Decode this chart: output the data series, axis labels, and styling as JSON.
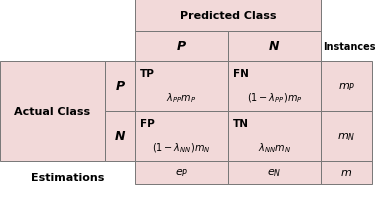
{
  "bg_color": "#f2d9d9",
  "border_color": "#777777",
  "fig_bg": "#ffffff",
  "title": "Predicted Class",
  "col_header_P": "$\\boldsymbol{P}$",
  "col_header_N": "$\\boldsymbol{N}$",
  "instances_label": "Instances",
  "actual_class_label": "Actual Class",
  "row_header_P": "$\\boldsymbol{P}$",
  "row_header_N": "$\\boldsymbol{N}$",
  "estimations_label": "Estimations",
  "cell_TP_top": "TP",
  "cell_TP_bot": "$\\lambda_{PP}m_P$",
  "cell_FN_top": "FN",
  "cell_FN_bot": "$(1-\\lambda_{PP})m_P$",
  "cell_FP_top": "FP",
  "cell_FP_bot": "$(1-\\lambda_{NN})m_N$",
  "cell_TN_top": "TN",
  "cell_TN_bot": "$\\lambda_{NN}m_N$",
  "cell_mP": "$m_P$",
  "cell_mN": "$m_N$",
  "cell_m": "$m$",
  "cell_eP": "$e_P$",
  "cell_eN": "$e_N$"
}
